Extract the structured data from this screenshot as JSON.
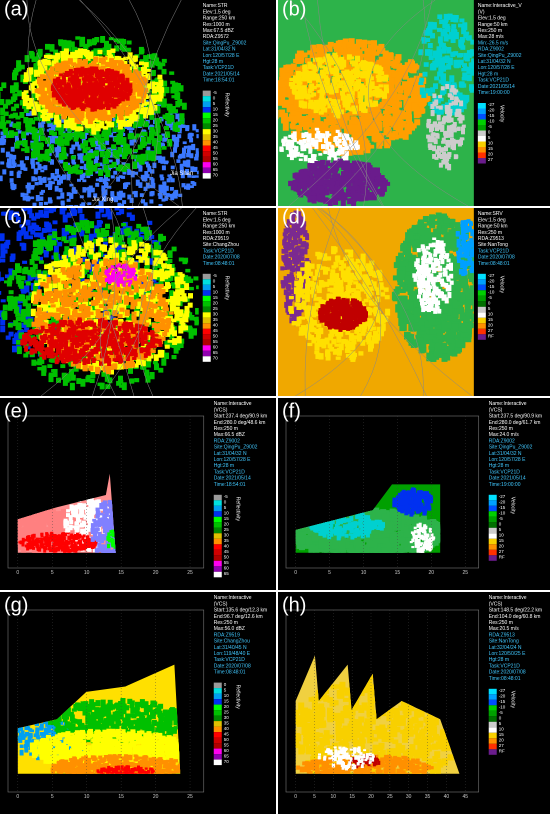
{
  "panels": [
    {
      "label": "(a)",
      "info": [
        "Name:STR",
        "Elev:1.5 deg",
        "Range:250 km",
        "Res:1000 m",
        "Max:67.5 dBZ",
        "RDA:Z9572",
        "Site:QingPu_Z9002",
        "Lat:31/04/32 N",
        "Lon:120/57/28 E",
        "Hgt:28 m",
        "Task:VCP21D",
        "Date:2021/05/14",
        "Time:18:54:01"
      ],
      "colorbar": {
        "title": "Reflectivity",
        "ticks": [
          "-5",
          "0",
          "5",
          "10",
          "15",
          "20",
          "25",
          "30",
          "35",
          "40",
          "45",
          "50",
          "55",
          "60",
          "65",
          "70"
        ]
      },
      "places": [
        "Jia Shan",
        "Jia Xing"
      ]
    },
    {
      "label": "(b)",
      "info": [
        "Name:Interactive_V",
        "(V)",
        "Elev:1.5 deg",
        "Range:50 km",
        "Res:250 m",
        "Max:28 m/s",
        "Min:-26.5 m/s",
        "RDA:Z9002",
        "Site:QingPu_Z9002",
        "Lat:31/04/32 N",
        "Lon:120/57/28 E",
        "Hgt:28 m",
        "Task:VCP21D",
        "Date:2021/05/14",
        "Time:19:00:00"
      ],
      "colorbar": {
        "title": "Velocity",
        "ticks": [
          "-27",
          "-20",
          "-15",
          "-10",
          "-5",
          "0",
          "5",
          "10",
          "15",
          "20",
          "27"
        ]
      }
    },
    {
      "label": "(c)",
      "info": [
        "Name:STR",
        "Elev:1.5 deg",
        "Range:250 km",
        "Res:1000 m",
        "RDA:Z9519",
        "Site:ChangZhou",
        "Task:VCP21D",
        "Date:2020/07/08",
        "Time:08:48:01"
      ],
      "colorbar": {
        "title": "Reflectivity",
        "ticks": [
          "-5",
          "0",
          "5",
          "10",
          "15",
          "20",
          "25",
          "30",
          "35",
          "40",
          "45",
          "50",
          "55",
          "60",
          "65",
          "70"
        ]
      }
    },
    {
      "label": "(d)",
      "info": [
        "Name:SRV",
        "Elev:1.5 deg",
        "Range:50 km",
        "Res:250 m",
        "RDA:Z9513",
        "Site:NanTong",
        "Task:VCP21D",
        "Date:2020/07/08",
        "Time:08:48:01"
      ],
      "colorbar": {
        "title": "Velocity",
        "ticks": [
          "-27",
          "-20",
          "-15",
          "-10",
          "-5",
          "0",
          "5",
          "10",
          "15",
          "20",
          "27",
          "RF"
        ]
      }
    },
    {
      "label": "(e)",
      "info": [
        "Name:Interactive",
        "(VCS)",
        "Start:237.4 deg/90.9 km",
        "End:280.0 deg/48.6 km",
        "Res:250 m",
        "Max:66.5 dBZ",
        "RDA:Z9002",
        "Site:QingPu_Z9002",
        "Lat:31/04/32 N",
        "Lon:120/57/28 E",
        "Hgt:28 m",
        "Task:VCP21D",
        "Date:2021/05/14",
        "Time:18:54:01"
      ],
      "colorbar": {
        "title": "Reflectivity",
        "ticks": [
          "-5",
          "0",
          "5",
          "10",
          "15",
          "20",
          "25",
          "30",
          "35",
          "40",
          "45",
          "50",
          "55",
          "60",
          "65"
        ]
      },
      "axis": [
        "0",
        "5",
        "10",
        "15",
        "20",
        "25"
      ]
    },
    {
      "label": "(f)",
      "info": [
        "Name:Interactive",
        "(VCS)",
        "Start:237.5 deg/90.9 km",
        "End:280.0 deg/61.7 km",
        "Res:250 m",
        "Max:24.0 m/s",
        "RDA:Z9002",
        "Site:QingPu_Z9002",
        "Lat:31/04/32 N",
        "Lon:120/57/28 E",
        "Hgt:28 m",
        "Task:VCP21D",
        "Date:2021/05/14",
        "Time:19:00:00"
      ],
      "colorbar": {
        "title": "Velocity",
        "ticks": [
          "-27",
          "-20",
          "-15",
          "-10",
          "-5",
          "0",
          "5",
          "10",
          "15",
          "20",
          "27",
          "RF"
        ]
      },
      "axis": [
        "0",
        "5",
        "10",
        "15",
        "20",
        "25"
      ]
    },
    {
      "label": "(g)",
      "info": [
        "Name:Interactive",
        "(VCS)",
        "Start:135.6 deg/12.3 km",
        "End:96.7 deg/12.6 km",
        "Res:250 m",
        "Max:56.0 dBZ",
        "RDA:Z9519",
        "Site:ChangZhou",
        "Lat:31/40/45 N",
        "Lon:119/48/40 E",
        "Task:VCP21D",
        "Date:2020/07/08",
        "Time:08:48:01"
      ],
      "colorbar": {
        "title": "Reflectivity",
        "ticks": [
          "0",
          "5",
          "10",
          "15",
          "20",
          "25",
          "30",
          "35",
          "40",
          "45",
          "50",
          "55",
          "60",
          "65",
          "70"
        ]
      },
      "axis": [
        "0",
        "5",
        "10",
        "15",
        "20",
        "25"
      ]
    },
    {
      "label": "(h)",
      "info": [
        "Name:Interactive",
        "(VCS)",
        "Start:148.5 deg/22.2 km",
        "End:104.0 deg/60.8 km",
        "Res:250 m",
        "Max:20.5 m/s",
        "RDA:Z9513",
        "Site:NanTong",
        "Lat:32/04/24 N",
        "Lon:120/50/25 E",
        "Hgt:28 m",
        "Task:VCP21D",
        "Date:2020/07/08",
        "Time:08:48:01"
      ],
      "colorbar": {
        "title": "Velocity",
        "ticks": [
          "-27",
          "-20",
          "-15",
          "-10",
          "-5",
          "0",
          "5",
          "10",
          "15",
          "20",
          "27",
          "RF"
        ]
      },
      "axis": [
        "0",
        "5",
        "10",
        "15",
        "20",
        "25",
        "30",
        "35",
        "40",
        "45"
      ]
    }
  ]
}
